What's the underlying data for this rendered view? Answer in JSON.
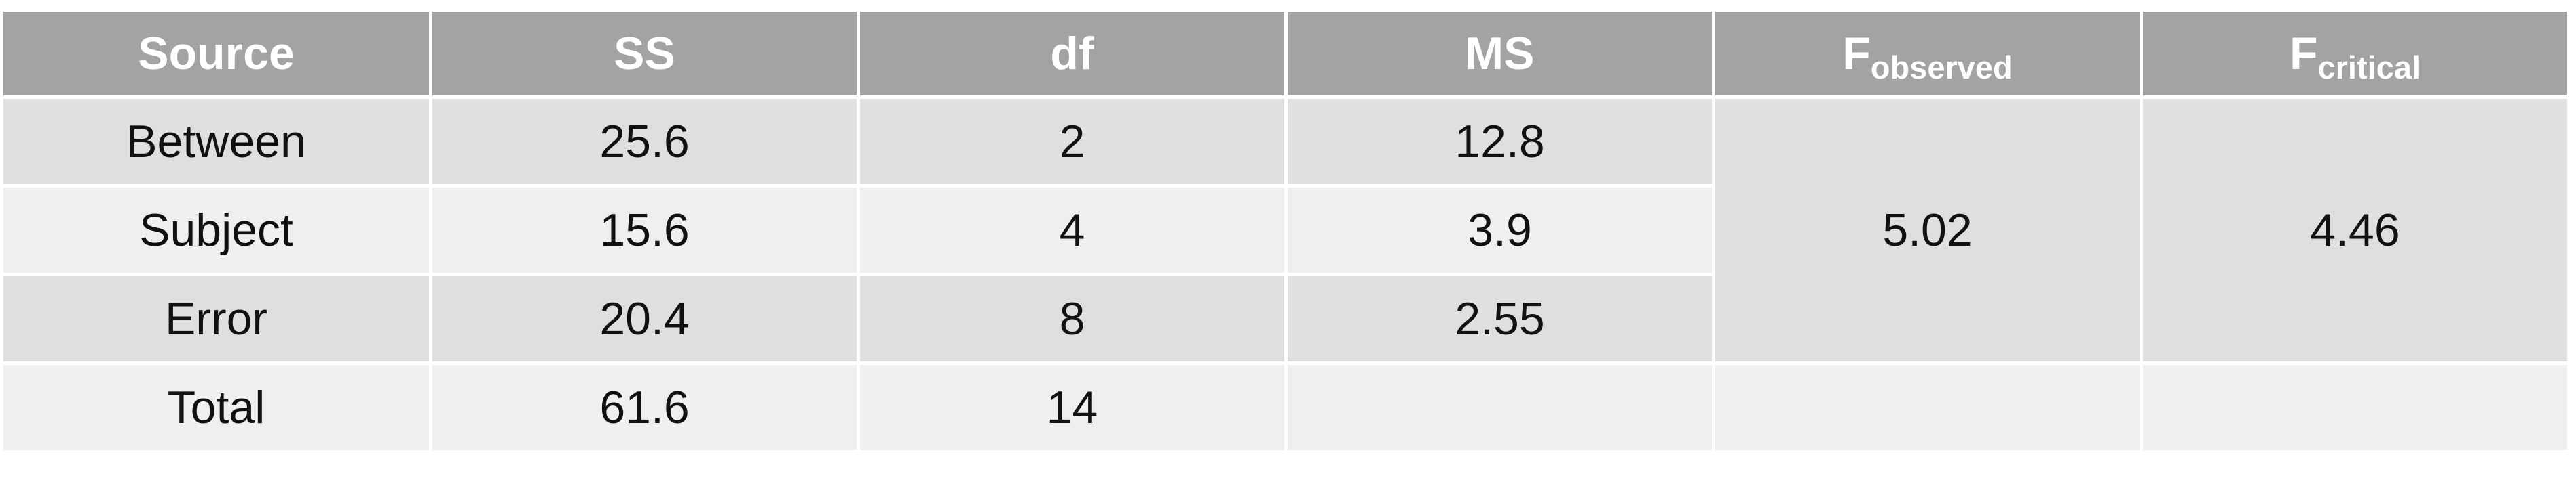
{
  "table": {
    "headers": {
      "source": "Source",
      "ss": "SS",
      "df": "df",
      "ms": "MS",
      "f_observed": {
        "main": "F",
        "sub": "observed"
      },
      "f_critical": {
        "main": "F",
        "sub": "critical"
      }
    },
    "rows": [
      {
        "source": "Between",
        "ss": "25.6",
        "df": "2",
        "ms": "12.8"
      },
      {
        "source": "Subject",
        "ss": "15.6",
        "df": "4",
        "ms": "3.9"
      },
      {
        "source": "Error",
        "ss": "20.4",
        "df": "8",
        "ms": "2.55"
      },
      {
        "source": "Total",
        "ss": "61.6",
        "df": "14",
        "ms": ""
      }
    ],
    "f_observed_value": "5.02",
    "f_critical_value": "4.46"
  },
  "colors": {
    "header_bg": "#a3a3a3",
    "header_text": "#ffffff",
    "row_dark": "#dfdfdf",
    "row_light": "#efefef",
    "grid_lines": "#ffffff"
  }
}
